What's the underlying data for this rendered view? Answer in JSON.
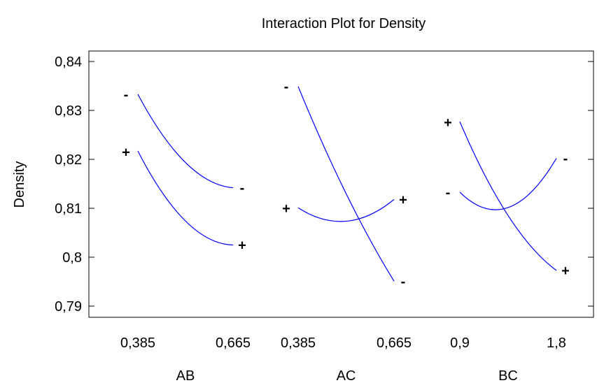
{
  "chart_data": {
    "type": "line",
    "title": "Interaction Plot for Density",
    "ylabel": "Density",
    "ylim": [
      0.79,
      0.842
    ],
    "yticks": [
      0.84,
      0.83,
      0.82,
      0.81,
      0.8,
      0.79
    ],
    "ytick_labels": [
      "0,84",
      "0,83",
      "0,82",
      "0,81",
      "0,8",
      "0,79"
    ],
    "grid": false,
    "line_color": "#0000ff",
    "panels": [
      {
        "factor": "AB",
        "xtick_labels": [
          "0,385",
          "0,665"
        ],
        "curves": [
          {
            "label": "-",
            "values": [
              0.8333,
              0.8142
            ],
            "curvature": 0.0044,
            "marker_y": 0.8333
          },
          {
            "label": "+",
            "values": [
              0.8217,
              0.8025
            ],
            "curvature": 0.0047,
            "marker_y": 0.8215
          }
        ]
      },
      {
        "factor": "AC",
        "xtick_labels": [
          "0,385",
          "0,665"
        ],
        "curves": [
          {
            "label": "-",
            "values": [
              0.8349,
              0.7951
            ],
            "curvature": 0.002,
            "marker_y": 0.8349
          },
          {
            "label": "+",
            "values": [
              0.8101,
              0.8118
            ],
            "curvature": 0.0036,
            "marker_y": 0.81
          }
        ]
      },
      {
        "factor": "BC",
        "xtick_labels": [
          "0,9",
          "1,8"
        ],
        "curves": [
          {
            "label": "+",
            "values": [
              0.8277,
              0.7973
            ],
            "curvature": 0.004,
            "marker_y": 0.8276
          },
          {
            "label": "-",
            "values": [
              0.8133,
              0.8202
            ],
            "curvature": 0.0066,
            "marker_y": 0.8133
          }
        ]
      }
    ]
  }
}
